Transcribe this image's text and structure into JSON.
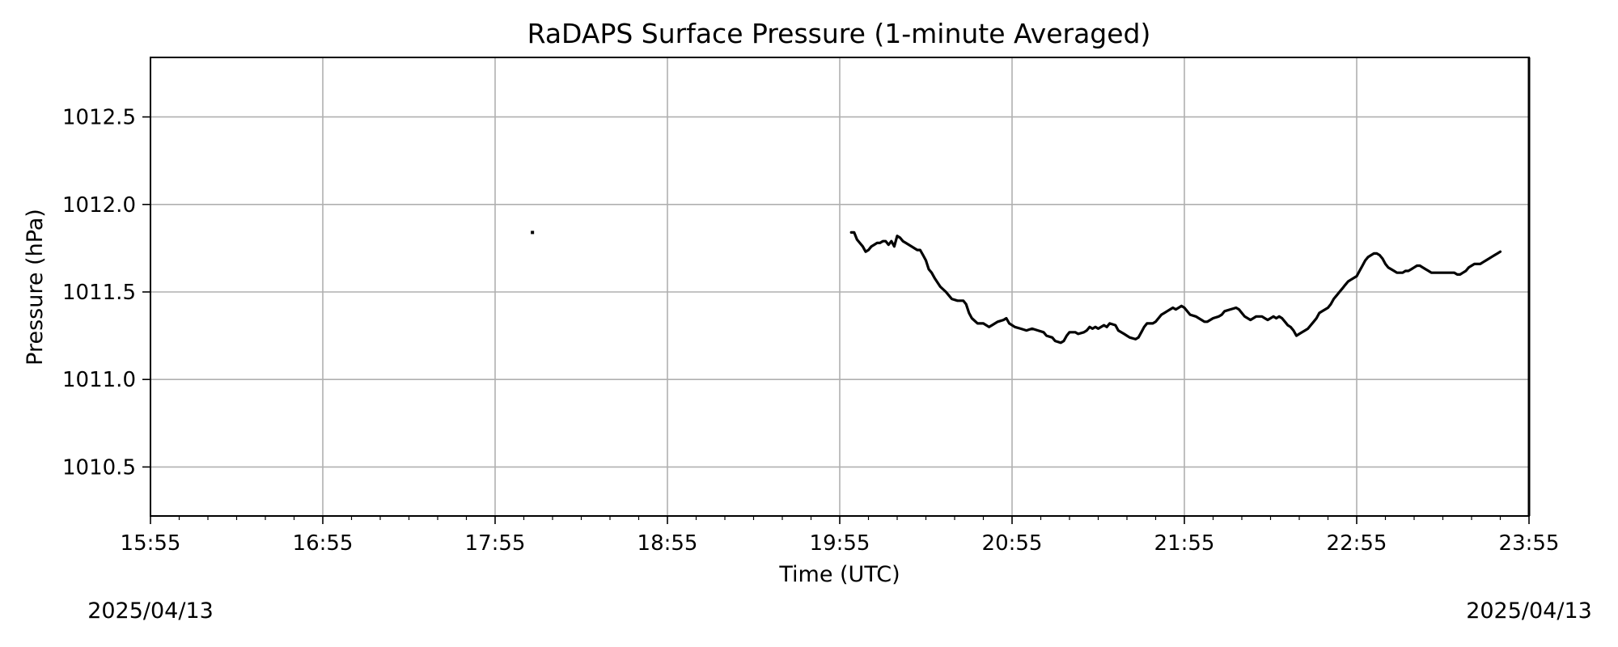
{
  "chart_data": {
    "type": "line",
    "title": "RaDAPS Surface Pressure (1-minute Averaged)",
    "xlabel": "Time (UTC)",
    "ylabel": "Pressure (hPa)",
    "x_ticks": [
      "15:55",
      "16:55",
      "17:55",
      "18:55",
      "19:55",
      "20:55",
      "21:55",
      "22:55",
      "23:55"
    ],
    "y_ticks": [
      "1010.5",
      "1011.0",
      "1011.5",
      "1012.0",
      "1012.5"
    ],
    "ylim": [
      1010.22,
      1012.84
    ],
    "xlim": [
      "15:55",
      "23:55"
    ],
    "grid": true,
    "date_left": "2025/04/13",
    "date_right": "2025/04/13",
    "line_color": "#000000",
    "series": [
      {
        "points": [
          [
            "18:08",
            1011.84
          ]
        ]
      },
      {
        "points": [
          [
            "19:59",
            1011.84
          ],
          [
            "20:00",
            1011.84
          ],
          [
            "20:01",
            1011.8
          ],
          [
            "20:02",
            1011.78
          ],
          [
            "20:03",
            1011.76
          ],
          [
            "20:04",
            1011.73
          ],
          [
            "20:05",
            1011.74
          ],
          [
            "20:06",
            1011.76
          ],
          [
            "20:07",
            1011.77
          ],
          [
            "20:08",
            1011.78
          ],
          [
            "20:09",
            1011.78
          ],
          [
            "20:10",
            1011.79
          ],
          [
            "20:11",
            1011.79
          ],
          [
            "20:12",
            1011.77
          ],
          [
            "20:13",
            1011.79
          ],
          [
            "20:14",
            1011.76
          ],
          [
            "20:15",
            1011.82
          ],
          [
            "20:16",
            1011.81
          ],
          [
            "20:17",
            1011.79
          ],
          [
            "20:18",
            1011.78
          ],
          [
            "20:20",
            1011.76
          ],
          [
            "20:22",
            1011.74
          ],
          [
            "20:23",
            1011.74
          ],
          [
            "20:24",
            1011.71
          ],
          [
            "20:25",
            1011.68
          ],
          [
            "20:26",
            1011.63
          ],
          [
            "20:27",
            1011.61
          ],
          [
            "20:28",
            1011.58
          ],
          [
            "20:30",
            1011.53
          ],
          [
            "20:32",
            1011.5
          ],
          [
            "20:33",
            1011.48
          ],
          [
            "20:34",
            1011.46
          ],
          [
            "20:36",
            1011.45
          ],
          [
            "20:38",
            1011.45
          ],
          [
            "20:39",
            1011.43
          ],
          [
            "20:40",
            1011.38
          ],
          [
            "20:41",
            1011.35
          ],
          [
            "20:43",
            1011.32
          ],
          [
            "20:45",
            1011.32
          ],
          [
            "20:47",
            1011.3
          ],
          [
            "20:48",
            1011.31
          ],
          [
            "20:50",
            1011.33
          ],
          [
            "20:52",
            1011.34
          ],
          [
            "20:53",
            1011.35
          ],
          [
            "20:54",
            1011.32
          ],
          [
            "20:56",
            1011.3
          ],
          [
            "20:58",
            1011.29
          ],
          [
            "21:00",
            1011.28
          ],
          [
            "21:02",
            1011.29
          ],
          [
            "21:04",
            1011.28
          ],
          [
            "21:06",
            1011.27
          ],
          [
            "21:07",
            1011.25
          ],
          [
            "21:09",
            1011.24
          ],
          [
            "21:10",
            1011.22
          ],
          [
            "21:12",
            1011.21
          ],
          [
            "21:13",
            1011.22
          ],
          [
            "21:14",
            1011.25
          ],
          [
            "21:15",
            1011.27
          ],
          [
            "21:17",
            1011.27
          ],
          [
            "21:18",
            1011.26
          ],
          [
            "21:20",
            1011.27
          ],
          [
            "21:21",
            1011.28
          ],
          [
            "21:22",
            1011.3
          ],
          [
            "21:23",
            1011.29
          ],
          [
            "21:24",
            1011.3
          ],
          [
            "21:25",
            1011.29
          ],
          [
            "21:26",
            1011.3
          ],
          [
            "21:27",
            1011.31
          ],
          [
            "21:28",
            1011.3
          ],
          [
            "21:29",
            1011.32
          ],
          [
            "21:31",
            1011.31
          ],
          [
            "21:32",
            1011.28
          ],
          [
            "21:34",
            1011.26
          ],
          [
            "21:35",
            1011.25
          ],
          [
            "21:36",
            1011.24
          ],
          [
            "21:38",
            1011.23
          ],
          [
            "21:39",
            1011.24
          ],
          [
            "21:40",
            1011.27
          ],
          [
            "21:41",
            1011.3
          ],
          [
            "21:42",
            1011.32
          ],
          [
            "21:44",
            1011.32
          ],
          [
            "21:45",
            1011.33
          ],
          [
            "21:46",
            1011.35
          ],
          [
            "21:47",
            1011.37
          ],
          [
            "21:48",
            1011.38
          ],
          [
            "21:49",
            1011.39
          ],
          [
            "21:50",
            1011.4
          ],
          [
            "21:51",
            1011.41
          ],
          [
            "21:52",
            1011.4
          ],
          [
            "21:53",
            1011.41
          ],
          [
            "21:54",
            1011.42
          ],
          [
            "21:55",
            1011.41
          ],
          [
            "21:56",
            1011.39
          ],
          [
            "21:57",
            1011.37
          ],
          [
            "21:59",
            1011.36
          ],
          [
            "22:00",
            1011.35
          ],
          [
            "22:01",
            1011.34
          ],
          [
            "22:02",
            1011.33
          ],
          [
            "22:03",
            1011.33
          ],
          [
            "22:05",
            1011.35
          ],
          [
            "22:07",
            1011.36
          ],
          [
            "22:08",
            1011.37
          ],
          [
            "22:09",
            1011.39
          ],
          [
            "22:11",
            1011.4
          ],
          [
            "22:13",
            1011.41
          ],
          [
            "22:14",
            1011.4
          ],
          [
            "22:15",
            1011.38
          ],
          [
            "22:16",
            1011.36
          ],
          [
            "22:18",
            1011.34
          ],
          [
            "22:19",
            1011.35
          ],
          [
            "22:20",
            1011.36
          ],
          [
            "22:22",
            1011.36
          ],
          [
            "22:23",
            1011.35
          ],
          [
            "22:24",
            1011.34
          ],
          [
            "22:25",
            1011.35
          ],
          [
            "22:26",
            1011.36
          ],
          [
            "22:27",
            1011.35
          ],
          [
            "22:28",
            1011.36
          ],
          [
            "22:29",
            1011.35
          ],
          [
            "22:30",
            1011.33
          ],
          [
            "22:31",
            1011.31
          ],
          [
            "22:32",
            1011.3
          ],
          [
            "22:33",
            1011.28
          ],
          [
            "22:34",
            1011.25
          ],
          [
            "22:35",
            1011.26
          ],
          [
            "22:36",
            1011.27
          ],
          [
            "22:37",
            1011.28
          ],
          [
            "22:38",
            1011.29
          ],
          [
            "22:39",
            1011.31
          ],
          [
            "22:40",
            1011.33
          ],
          [
            "22:41",
            1011.35
          ],
          [
            "22:42",
            1011.38
          ],
          [
            "22:43",
            1011.39
          ],
          [
            "22:44",
            1011.4
          ],
          [
            "22:45",
            1011.41
          ],
          [
            "22:46",
            1011.43
          ],
          [
            "22:47",
            1011.46
          ],
          [
            "22:48",
            1011.48
          ],
          [
            "22:49",
            1011.5
          ],
          [
            "22:50",
            1011.52
          ],
          [
            "22:51",
            1011.54
          ],
          [
            "22:52",
            1011.56
          ],
          [
            "22:53",
            1011.57
          ],
          [
            "22:55",
            1011.59
          ],
          [
            "22:56",
            1011.62
          ],
          [
            "22:57",
            1011.65
          ],
          [
            "22:58",
            1011.68
          ],
          [
            "22:59",
            1011.7
          ],
          [
            "23:00",
            1011.71
          ],
          [
            "23:01",
            1011.72
          ],
          [
            "23:02",
            1011.72
          ],
          [
            "23:03",
            1011.71
          ],
          [
            "23:04",
            1011.69
          ],
          [
            "23:05",
            1011.66
          ],
          [
            "23:06",
            1011.64
          ],
          [
            "23:07",
            1011.63
          ],
          [
            "23:08",
            1011.62
          ],
          [
            "23:09",
            1011.61
          ],
          [
            "23:10",
            1011.61
          ],
          [
            "23:11",
            1011.61
          ],
          [
            "23:12",
            1011.62
          ],
          [
            "23:13",
            1011.62
          ],
          [
            "23:14",
            1011.63
          ],
          [
            "23:15",
            1011.64
          ],
          [
            "23:16",
            1011.65
          ],
          [
            "23:17",
            1011.65
          ],
          [
            "23:18",
            1011.64
          ],
          [
            "23:19",
            1011.63
          ],
          [
            "23:20",
            1011.62
          ],
          [
            "23:21",
            1011.61
          ],
          [
            "23:22",
            1011.61
          ],
          [
            "23:24",
            1011.61
          ],
          [
            "23:26",
            1011.61
          ],
          [
            "23:28",
            1011.61
          ],
          [
            "23:29",
            1011.61
          ],
          [
            "23:30",
            1011.6
          ],
          [
            "23:31",
            1011.6
          ],
          [
            "23:32",
            1011.61
          ],
          [
            "23:33",
            1011.62
          ],
          [
            "23:34",
            1011.64
          ],
          [
            "23:35",
            1011.65
          ],
          [
            "23:36",
            1011.66
          ],
          [
            "23:37",
            1011.66
          ],
          [
            "23:38",
            1011.66
          ],
          [
            "23:39",
            1011.67
          ],
          [
            "23:40",
            1011.68
          ],
          [
            "23:41",
            1011.69
          ],
          [
            "23:42",
            1011.7
          ],
          [
            "23:43",
            1011.71
          ],
          [
            "23:44",
            1011.72
          ],
          [
            "23:45",
            1011.73
          ]
        ]
      }
    ]
  }
}
